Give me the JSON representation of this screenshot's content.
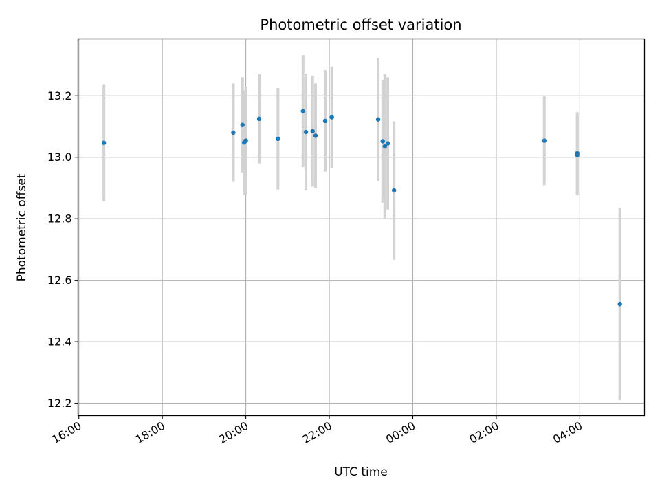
{
  "chart_data": {
    "type": "scatter",
    "title": "Photometric offset variation",
    "xlabel": "UTC time",
    "ylabel": "Photometric offset",
    "x_unit": "hours since 00:00 UTC of the first day (values past 24 wrap to the next day)",
    "xlim": [
      15.98,
      29.55
    ],
    "ylim": [
      12.16,
      13.385
    ],
    "x_ticks": [
      16,
      18,
      20,
      22,
      24,
      26,
      28
    ],
    "x_tick_labels": [
      "16:00",
      "18:00",
      "20:00",
      "22:00",
      "00:00",
      "02:00",
      "04:00"
    ],
    "y_ticks": [
      12.2,
      12.4,
      12.6,
      12.8,
      13.0,
      13.2
    ],
    "y_tick_labels": [
      "12.2",
      "12.4",
      "12.6",
      "12.8",
      "13.0",
      "13.2"
    ],
    "grid": true,
    "colors": {
      "point": "#1f77b4",
      "errorbar": "#d3d3d3",
      "grid": "#b0b0b0"
    },
    "points": [
      {
        "x": 16.6,
        "y": 13.047,
        "err": 0.19
      },
      {
        "x": 19.7,
        "y": 13.08,
        "err": 0.16
      },
      {
        "x": 19.92,
        "y": 13.105,
        "err": 0.155
      },
      {
        "x": 19.96,
        "y": 13.048,
        "err": 0.17
      },
      {
        "x": 20.0,
        "y": 13.054,
        "err": 0.175
      },
      {
        "x": 20.32,
        "y": 13.125,
        "err": 0.145
      },
      {
        "x": 20.77,
        "y": 13.06,
        "err": 0.165
      },
      {
        "x": 21.37,
        "y": 13.15,
        "err": 0.182
      },
      {
        "x": 21.44,
        "y": 13.082,
        "err": 0.19
      },
      {
        "x": 21.6,
        "y": 13.085,
        "err": 0.18
      },
      {
        "x": 21.67,
        "y": 13.07,
        "err": 0.17
      },
      {
        "x": 21.9,
        "y": 13.118,
        "err": 0.165
      },
      {
        "x": 22.06,
        "y": 13.13,
        "err": 0.165
      },
      {
        "x": 23.17,
        "y": 13.123,
        "err": 0.2
      },
      {
        "x": 23.28,
        "y": 13.052,
        "err": 0.2
      },
      {
        "x": 23.33,
        "y": 13.035,
        "err": 0.235
      },
      {
        "x": 23.4,
        "y": 13.045,
        "err": 0.215
      },
      {
        "x": 23.55,
        "y": 12.892,
        "err": 0.225
      },
      {
        "x": 27.15,
        "y": 13.054,
        "err": 0.145
      },
      {
        "x": 27.94,
        "y": 13.013,
        "err": 0.133
      },
      {
        "x": 27.94,
        "y": 13.007,
        "err": 0.13
      },
      {
        "x": 28.96,
        "y": 12.523,
        "err": 0.313
      }
    ]
  }
}
